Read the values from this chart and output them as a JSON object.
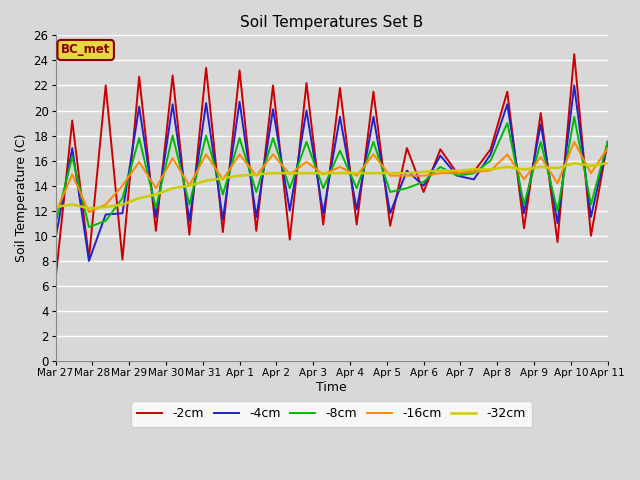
{
  "title": "Soil Temperatures Set B",
  "xlabel": "Time",
  "ylabel": "Soil Temperature (C)",
  "ylim": [
    0,
    26
  ],
  "yticks": [
    0,
    2,
    4,
    6,
    8,
    10,
    12,
    14,
    16,
    18,
    20,
    22,
    24,
    26
  ],
  "bg_color": "#d8d8d8",
  "plot_bg_color": "#d8d8d8",
  "legend_label": "BC_met",
  "series_colors": [
    "#cc0000",
    "#2222cc",
    "#00bb00",
    "#ff8800",
    "#cccc00"
  ],
  "series_names": [
    "-2cm",
    "-4cm",
    "-8cm",
    "-16cm",
    "-32cm"
  ],
  "series_lw": [
    1.4,
    1.4,
    1.4,
    1.4,
    1.8
  ],
  "x_labels": [
    "Mar 27",
    "Mar 28",
    "Mar 29",
    "Mar 30",
    "Mar 31",
    "Apr 1",
    "Apr 2",
    "Apr 3",
    "Apr 4",
    "Apr 5",
    "Apr 6",
    "Apr 7",
    "Apr 8",
    "Apr 9",
    "Apr 10",
    "Apr 11"
  ],
  "data_2cm": [
    6.5,
    19.2,
    8.2,
    22.0,
    8.1,
    22.7,
    10.4,
    22.8,
    10.1,
    23.4,
    10.3,
    23.2,
    10.4,
    22.0,
    9.7,
    22.2,
    10.9,
    21.8,
    10.9,
    21.5,
    10.8,
    17.0,
    13.5,
    16.9,
    15.0,
    15.1,
    16.9,
    21.5,
    10.6,
    19.8,
    9.5,
    24.5,
    10.0,
    17.5
  ],
  "data_4cm": [
    9.8,
    17.0,
    8.0,
    11.7,
    11.8,
    20.3,
    11.5,
    20.5,
    11.2,
    20.6,
    11.3,
    20.7,
    11.5,
    20.1,
    12.0,
    20.0,
    11.8,
    19.5,
    12.1,
    19.5,
    11.8,
    15.2,
    14.0,
    16.4,
    14.8,
    14.5,
    16.5,
    20.5,
    11.8,
    18.9,
    11.0,
    22.0,
    11.5,
    17.5
  ],
  "data_8cm": [
    11.0,
    16.3,
    10.7,
    11.2,
    13.0,
    17.8,
    12.2,
    18.0,
    12.5,
    18.0,
    13.3,
    17.8,
    13.5,
    17.8,
    13.8,
    17.5,
    13.8,
    16.8,
    13.8,
    17.5,
    13.5,
    13.8,
    14.3,
    15.5,
    14.8,
    15.0,
    16.0,
    19.0,
    12.5,
    17.5,
    12.0,
    19.5,
    12.5,
    17.5
  ],
  "data_16cm": [
    11.8,
    14.9,
    11.9,
    12.5,
    14.0,
    15.9,
    13.8,
    16.2,
    14.0,
    16.5,
    14.5,
    16.5,
    14.8,
    16.5,
    14.9,
    15.9,
    14.9,
    15.5,
    14.8,
    16.5,
    14.8,
    14.8,
    14.8,
    15.0,
    15.0,
    15.1,
    15.2,
    16.5,
    14.5,
    16.3,
    14.2,
    17.5,
    15.0,
    17.0
  ],
  "data_32cm": [
    12.3,
    12.5,
    12.2,
    12.3,
    12.5,
    13.0,
    13.3,
    13.8,
    14.0,
    14.4,
    14.6,
    14.8,
    14.9,
    15.0,
    15.0,
    15.0,
    15.0,
    15.0,
    15.0,
    15.0,
    15.0,
    15.0,
    15.1,
    15.2,
    15.2,
    15.3,
    15.3,
    15.5,
    15.3,
    15.5,
    15.4,
    15.8,
    15.6,
    15.8
  ]
}
